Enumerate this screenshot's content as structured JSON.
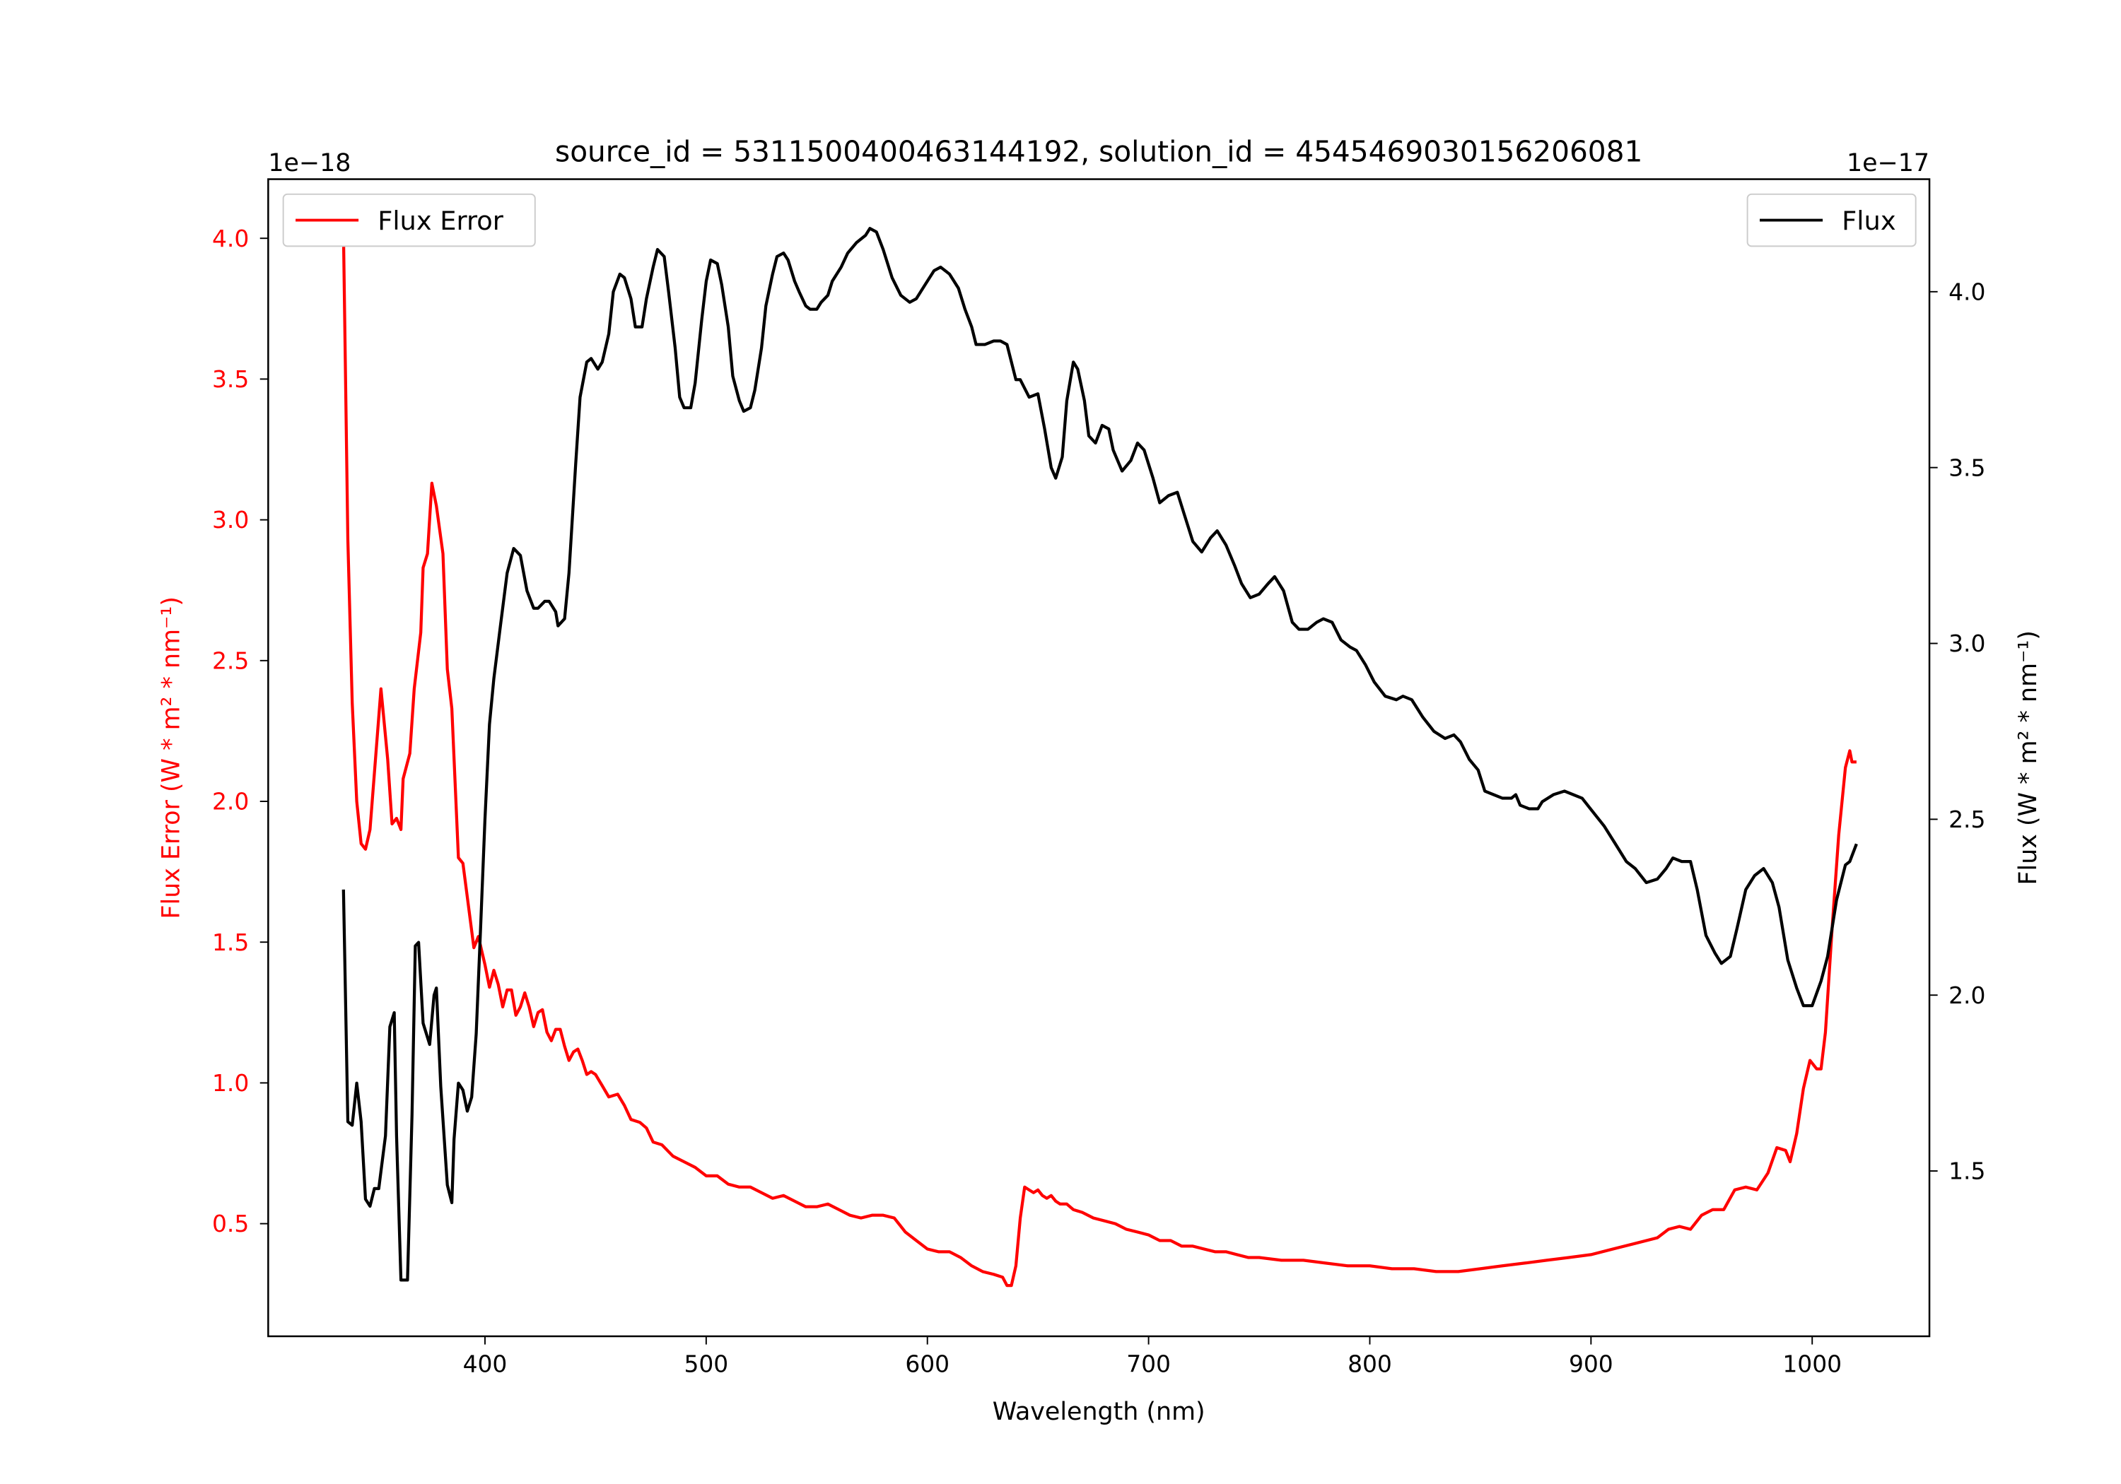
{
  "chart_data": {
    "type": "line",
    "title": "source_id = 5311500400463144192, solution_id = 4545469030156206081",
    "xlabel": "Wavelength (nm)",
    "ylabel_left": "Flux Error (W * m² * nm⁻¹)",
    "ylabel_right": "Flux (W * m² * nm⁻¹)",
    "offset_left": "1e−18",
    "offset_right": "1e−17",
    "xlim": [
      302,
      1053
    ],
    "ylim_left": [
      0.1,
      4.21
    ],
    "ylim_right": [
      1.03,
      4.32
    ],
    "xticks": [
      400,
      500,
      600,
      700,
      800,
      900,
      1000
    ],
    "yticks_left": [
      0.5,
      1.0,
      1.5,
      2.0,
      2.5,
      3.0,
      3.5,
      4.0
    ],
    "yticks_right": [
      1.5,
      2.0,
      2.5,
      3.0,
      3.5,
      4.0
    ],
    "grid": false,
    "series": [
      {
        "name": "Flux Error",
        "axis": "left",
        "color": "#ff0000",
        "legend": "top-left",
        "x": [
          336,
          338,
          340,
          342,
          344,
          346,
          348,
          350,
          353,
          356,
          358,
          360,
          362,
          363,
          366,
          368,
          371,
          372,
          374,
          376,
          378,
          381,
          383,
          385,
          388,
          390,
          393,
          395,
          397,
          400,
          402,
          404,
          406,
          408,
          410,
          412,
          414,
          416,
          418,
          420,
          422,
          424,
          426,
          428,
          430,
          432,
          434,
          436,
          438,
          440,
          442,
          444,
          446,
          448,
          450,
          453,
          456,
          460,
          463,
          466,
          470,
          473,
          476,
          480,
          485,
          490,
          495,
          500,
          505,
          510,
          515,
          520,
          525,
          530,
          535,
          540,
          545,
          550,
          555,
          560,
          565,
          570,
          575,
          580,
          585,
          590,
          595,
          600,
          605,
          610,
          615,
          620,
          625,
          630,
          634,
          636,
          638,
          640,
          642,
          644,
          646,
          648,
          650,
          652,
          654,
          656,
          658,
          660,
          663,
          666,
          670,
          675,
          680,
          685,
          690,
          695,
          700,
          705,
          710,
          715,
          720,
          725,
          730,
          735,
          740,
          745,
          750,
          760,
          770,
          780,
          790,
          800,
          810,
          820,
          830,
          840,
          850,
          860,
          870,
          880,
          890,
          900,
          910,
          920,
          930,
          935,
          940,
          945,
          950,
          955,
          960,
          965,
          970,
          975,
          980,
          984,
          988,
          990,
          993,
          996,
          999,
          1002,
          1004,
          1006,
          1009,
          1012,
          1015,
          1017,
          1018,
          1020
        ],
        "y": [
          4.02,
          2.93,
          2.35,
          2.0,
          1.85,
          1.83,
          1.9,
          2.1,
          2.4,
          2.15,
          1.92,
          1.94,
          1.9,
          2.08,
          2.17,
          2.4,
          2.6,
          2.83,
          2.88,
          3.13,
          3.05,
          2.88,
          2.47,
          2.33,
          1.8,
          1.78,
          1.6,
          1.48,
          1.52,
          1.42,
          1.34,
          1.4,
          1.35,
          1.27,
          1.33,
          1.33,
          1.24,
          1.27,
          1.32,
          1.27,
          1.2,
          1.25,
          1.26,
          1.18,
          1.15,
          1.19,
          1.19,
          1.13,
          1.08,
          1.11,
          1.12,
          1.08,
          1.03,
          1.04,
          1.03,
          0.99,
          0.95,
          0.96,
          0.92,
          0.87,
          0.86,
          0.84,
          0.79,
          0.78,
          0.74,
          0.72,
          0.7,
          0.67,
          0.67,
          0.64,
          0.63,
          0.63,
          0.61,
          0.59,
          0.6,
          0.58,
          0.56,
          0.56,
          0.57,
          0.55,
          0.53,
          0.52,
          0.53,
          0.53,
          0.52,
          0.47,
          0.44,
          0.41,
          0.4,
          0.4,
          0.38,
          0.35,
          0.33,
          0.32,
          0.31,
          0.28,
          0.28,
          0.35,
          0.52,
          0.63,
          0.62,
          0.61,
          0.62,
          0.6,
          0.59,
          0.6,
          0.58,
          0.57,
          0.57,
          0.55,
          0.54,
          0.52,
          0.51,
          0.5,
          0.48,
          0.47,
          0.46,
          0.44,
          0.44,
          0.42,
          0.42,
          0.41,
          0.4,
          0.4,
          0.39,
          0.38,
          0.38,
          0.37,
          0.37,
          0.36,
          0.35,
          0.35,
          0.34,
          0.34,
          0.33,
          0.33,
          0.34,
          0.35,
          0.36,
          0.37,
          0.38,
          0.39,
          0.41,
          0.43,
          0.45,
          0.48,
          0.49,
          0.48,
          0.53,
          0.55,
          0.55,
          0.62,
          0.63,
          0.62,
          0.68,
          0.77,
          0.76,
          0.72,
          0.82,
          0.98,
          1.08,
          1.05,
          1.05,
          1.18,
          1.55,
          1.88,
          2.12,
          2.18,
          2.14,
          2.14
        ]
      },
      {
        "name": "Flux",
        "axis": "right",
        "color": "#000000",
        "legend": "top-right",
        "x": [
          336,
          338,
          340,
          342,
          344,
          346,
          348,
          350,
          352,
          355,
          357,
          359,
          360,
          362,
          365,
          367,
          368.5,
          370,
          372,
          375,
          377,
          378,
          380,
          383,
          385,
          386,
          388,
          390,
          392,
          394,
          396,
          398,
          400,
          402,
          404,
          407,
          410,
          413,
          416,
          419,
          422,
          424,
          427,
          429,
          432,
          433,
          436,
          438,
          441,
          443,
          446,
          448,
          451,
          453,
          456,
          458,
          461,
          463,
          466,
          468,
          471,
          473,
          476,
          478,
          481,
          483,
          486,
          488,
          490,
          493,
          495,
          498,
          500,
          502,
          505,
          507,
          510,
          512,
          515,
          517,
          520,
          522,
          525,
          527,
          530,
          532,
          535,
          537,
          540,
          542,
          545,
          547,
          550,
          552,
          555,
          557,
          561,
          564,
          568,
          572,
          574,
          577,
          580,
          584,
          588,
          592,
          595,
          599,
          603,
          606,
          610,
          614,
          617,
          620,
          622,
          626,
          630,
          633,
          636,
          640,
          642,
          646,
          650,
          653,
          656,
          658,
          661,
          663,
          666,
          668,
          671,
          673,
          676,
          679,
          682,
          684,
          688,
          692,
          695,
          698,
          702,
          705,
          709,
          713,
          716,
          720,
          724,
          728,
          731,
          735,
          739,
          742,
          746,
          750,
          754,
          757,
          761,
          765,
          768,
          772,
          776,
          779,
          783,
          787,
          791,
          794,
          798,
          802,
          807,
          812,
          815,
          819,
          824,
          829,
          834,
          838,
          841,
          845,
          849,
          852,
          856,
          860,
          864,
          866,
          868,
          872,
          876,
          878,
          883,
          888,
          892,
          896,
          901,
          906,
          911,
          916,
          920,
          925,
          930,
          934,
          937,
          941,
          945,
          948,
          952,
          956,
          959,
          963,
          966,
          970,
          974,
          978,
          982,
          985,
          989,
          993,
          996,
          1000,
          1004,
          1007,
          1011,
          1015,
          1017,
          1020
        ],
        "y": [
          2.3,
          1.64,
          1.63,
          1.75,
          1.64,
          1.42,
          1.4,
          1.45,
          1.45,
          1.6,
          1.91,
          1.95,
          1.6,
          1.19,
          1.19,
          1.66,
          2.14,
          2.15,
          1.92,
          1.86,
          2.0,
          2.02,
          1.74,
          1.46,
          1.41,
          1.59,
          1.75,
          1.73,
          1.67,
          1.71,
          1.89,
          2.19,
          2.5,
          2.77,
          2.9,
          3.05,
          3.2,
          3.27,
          3.25,
          3.15,
          3.1,
          3.1,
          3.12,
          3.12,
          3.09,
          3.05,
          3.07,
          3.2,
          3.51,
          3.7,
          3.8,
          3.81,
          3.78,
          3.8,
          3.88,
          4.0,
          4.05,
          4.04,
          3.98,
          3.9,
          3.9,
          3.98,
          4.07,
          4.12,
          4.1,
          4.0,
          3.84,
          3.7,
          3.67,
          3.67,
          3.74,
          3.92,
          4.03,
          4.09,
          4.08,
          4.02,
          3.9,
          3.76,
          3.69,
          3.66,
          3.67,
          3.72,
          3.84,
          3.96,
          4.05,
          4.1,
          4.11,
          4.09,
          4.03,
          4.0,
          3.96,
          3.95,
          3.95,
          3.97,
          3.99,
          4.03,
          4.07,
          4.11,
          4.14,
          4.16,
          4.18,
          4.17,
          4.12,
          4.04,
          3.99,
          3.97,
          3.98,
          4.02,
          4.06,
          4.07,
          4.05,
          4.01,
          3.95,
          3.9,
          3.85,
          3.85,
          3.86,
          3.86,
          3.85,
          3.75,
          3.75,
          3.7,
          3.71,
          3.61,
          3.5,
          3.47,
          3.53,
          3.69,
          3.8,
          3.78,
          3.69,
          3.59,
          3.57,
          3.62,
          3.61,
          3.55,
          3.49,
          3.52,
          3.57,
          3.55,
          3.47,
          3.4,
          3.42,
          3.43,
          3.37,
          3.29,
          3.26,
          3.3,
          3.32,
          3.28,
          3.22,
          3.17,
          3.13,
          3.14,
          3.17,
          3.19,
          3.15,
          3.06,
          3.04,
          3.04,
          3.06,
          3.07,
          3.06,
          3.01,
          2.99,
          2.98,
          2.94,
          2.89,
          2.85,
          2.84,
          2.85,
          2.84,
          2.79,
          2.75,
          2.73,
          2.74,
          2.72,
          2.67,
          2.64,
          2.58,
          2.57,
          2.56,
          2.56,
          2.57,
          2.54,
          2.53,
          2.53,
          2.55,
          2.57,
          2.58,
          2.57,
          2.56,
          2.52,
          2.48,
          2.43,
          2.38,
          2.36,
          2.32,
          2.33,
          2.36,
          2.39,
          2.38,
          2.38,
          2.3,
          2.17,
          2.12,
          2.09,
          2.11,
          2.19,
          2.3,
          2.34,
          2.36,
          2.32,
          2.25,
          2.1,
          2.02,
          1.97,
          1.97,
          2.04,
          2.11,
          2.27,
          2.37,
          2.38,
          2.43
        ]
      }
    ]
  }
}
